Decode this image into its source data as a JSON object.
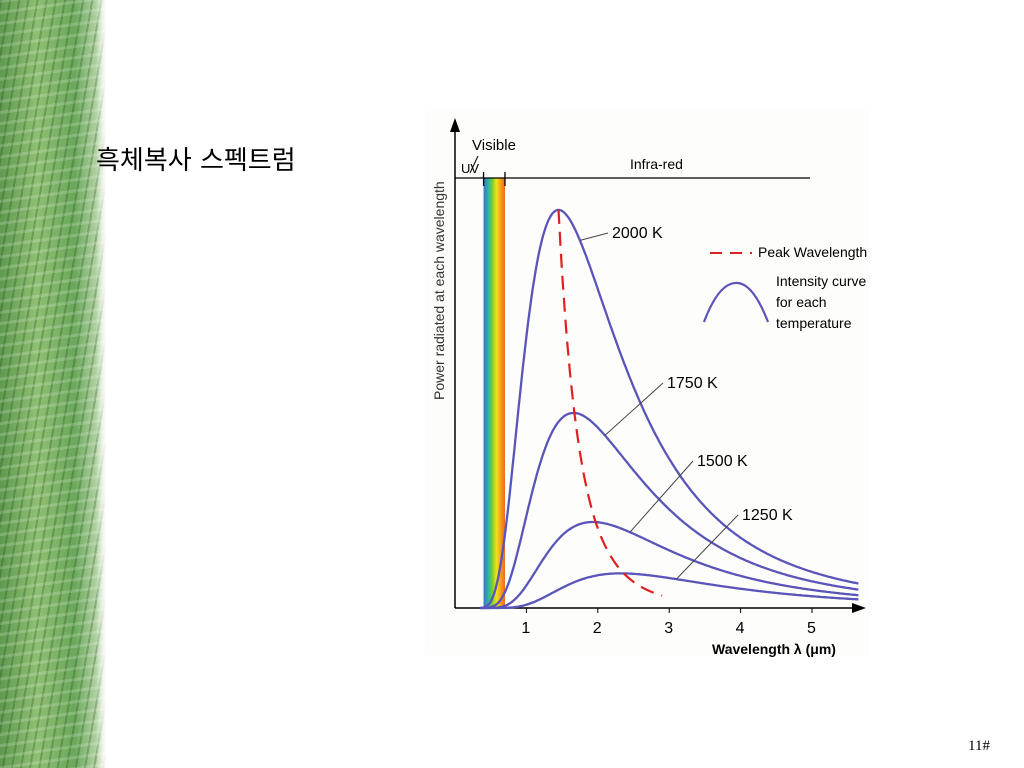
{
  "slide": {
    "title": "흑체복사  스펙트럼",
    "page_number": "11#"
  },
  "chart_data": {
    "type": "line",
    "ylabel": "Power radiated at each wavelength",
    "xlabel": "Wavelength λ (μm)",
    "xlim": [
      0,
      5.7
    ],
    "ylim": [
      0,
      1.05
    ],
    "x_ticks": [
      "1",
      "2",
      "3",
      "4",
      "5"
    ],
    "x_tick_values": [
      1,
      2,
      3,
      4,
      5
    ],
    "region_labels": {
      "uv": "UV",
      "visible": "Visible",
      "infrared": "Infra-red"
    },
    "region_bounds": {
      "visible_start": 0.4,
      "visible_end": 0.7
    },
    "series": [
      {
        "name": "2000 K",
        "temperature": 2000,
        "peak_x": 1.45,
        "peak_y": 1.0
      },
      {
        "name": "1750 K",
        "temperature": 1750,
        "peak_x": 1.66,
        "peak_y": 0.49
      },
      {
        "name": "1500 K",
        "temperature": 1500,
        "peak_x": 1.93,
        "peak_y": 0.216
      },
      {
        "name": "1250 K",
        "temperature": 1250,
        "peak_x": 2.32,
        "peak_y": 0.087
      }
    ],
    "peak_line": {
      "label": "Peak Wavelength",
      "color": "#e02020"
    },
    "legend": {
      "placement": "top-right",
      "peak_label": "Peak Wavelength",
      "curve_label": [
        "Intensity curve",
        "for each",
        "temperature"
      ]
    },
    "colors": {
      "curve": "#5a55b8",
      "peak": "#e02020",
      "axis": "#000000"
    }
  }
}
